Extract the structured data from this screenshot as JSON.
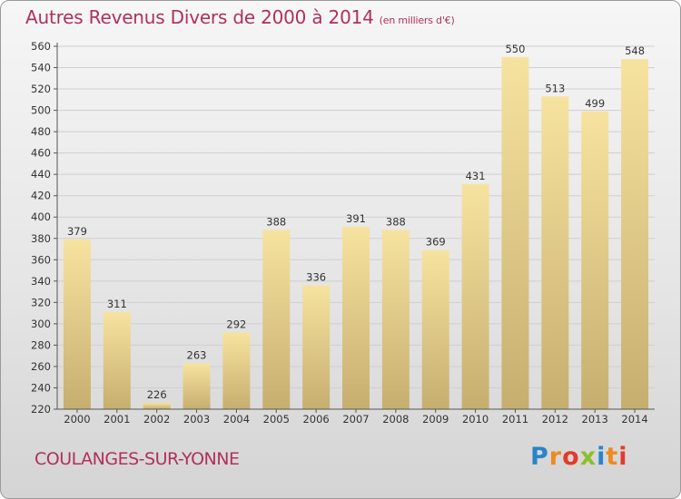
{
  "header": {
    "title": "Autres Revenus Divers de 2000 à 2014",
    "subtitle": "(en milliers d'€)"
  },
  "footer": {
    "town": "COULANGES-SUR-YONNE",
    "logo": [
      "P",
      "r",
      "o",
      "x",
      "i",
      "t",
      "i"
    ],
    "logo_colors": [
      "#2a84c8",
      "#f08a1c",
      "#e53a2a",
      "#8cbf2a",
      "#2a84c8",
      "#f08a1c",
      "#e53a2a"
    ]
  },
  "colors": {
    "title": "#b0305c",
    "bar_light": "#f7e3a0",
    "bar_dark": "#c6ae6f"
  },
  "chart_data": {
    "type": "bar",
    "title": "Autres Revenus Divers de 2000 à 2014",
    "subtitle": "(en milliers d'€)",
    "xlabel": "",
    "ylabel": "",
    "categories": [
      "2000",
      "2001",
      "2002",
      "2003",
      "2004",
      "2005",
      "2006",
      "2007",
      "2008",
      "2009",
      "2010",
      "2011",
      "2012",
      "2013",
      "2014"
    ],
    "values": [
      379,
      311,
      226,
      263,
      292,
      388,
      336,
      391,
      388,
      369,
      431,
      550,
      513,
      499,
      548
    ],
    "ylim": [
      220,
      560
    ],
    "yticks": [
      220,
      240,
      260,
      280,
      300,
      320,
      340,
      360,
      380,
      400,
      420,
      440,
      460,
      480,
      500,
      520,
      540,
      560
    ],
    "grid": true,
    "legend": "none"
  }
}
